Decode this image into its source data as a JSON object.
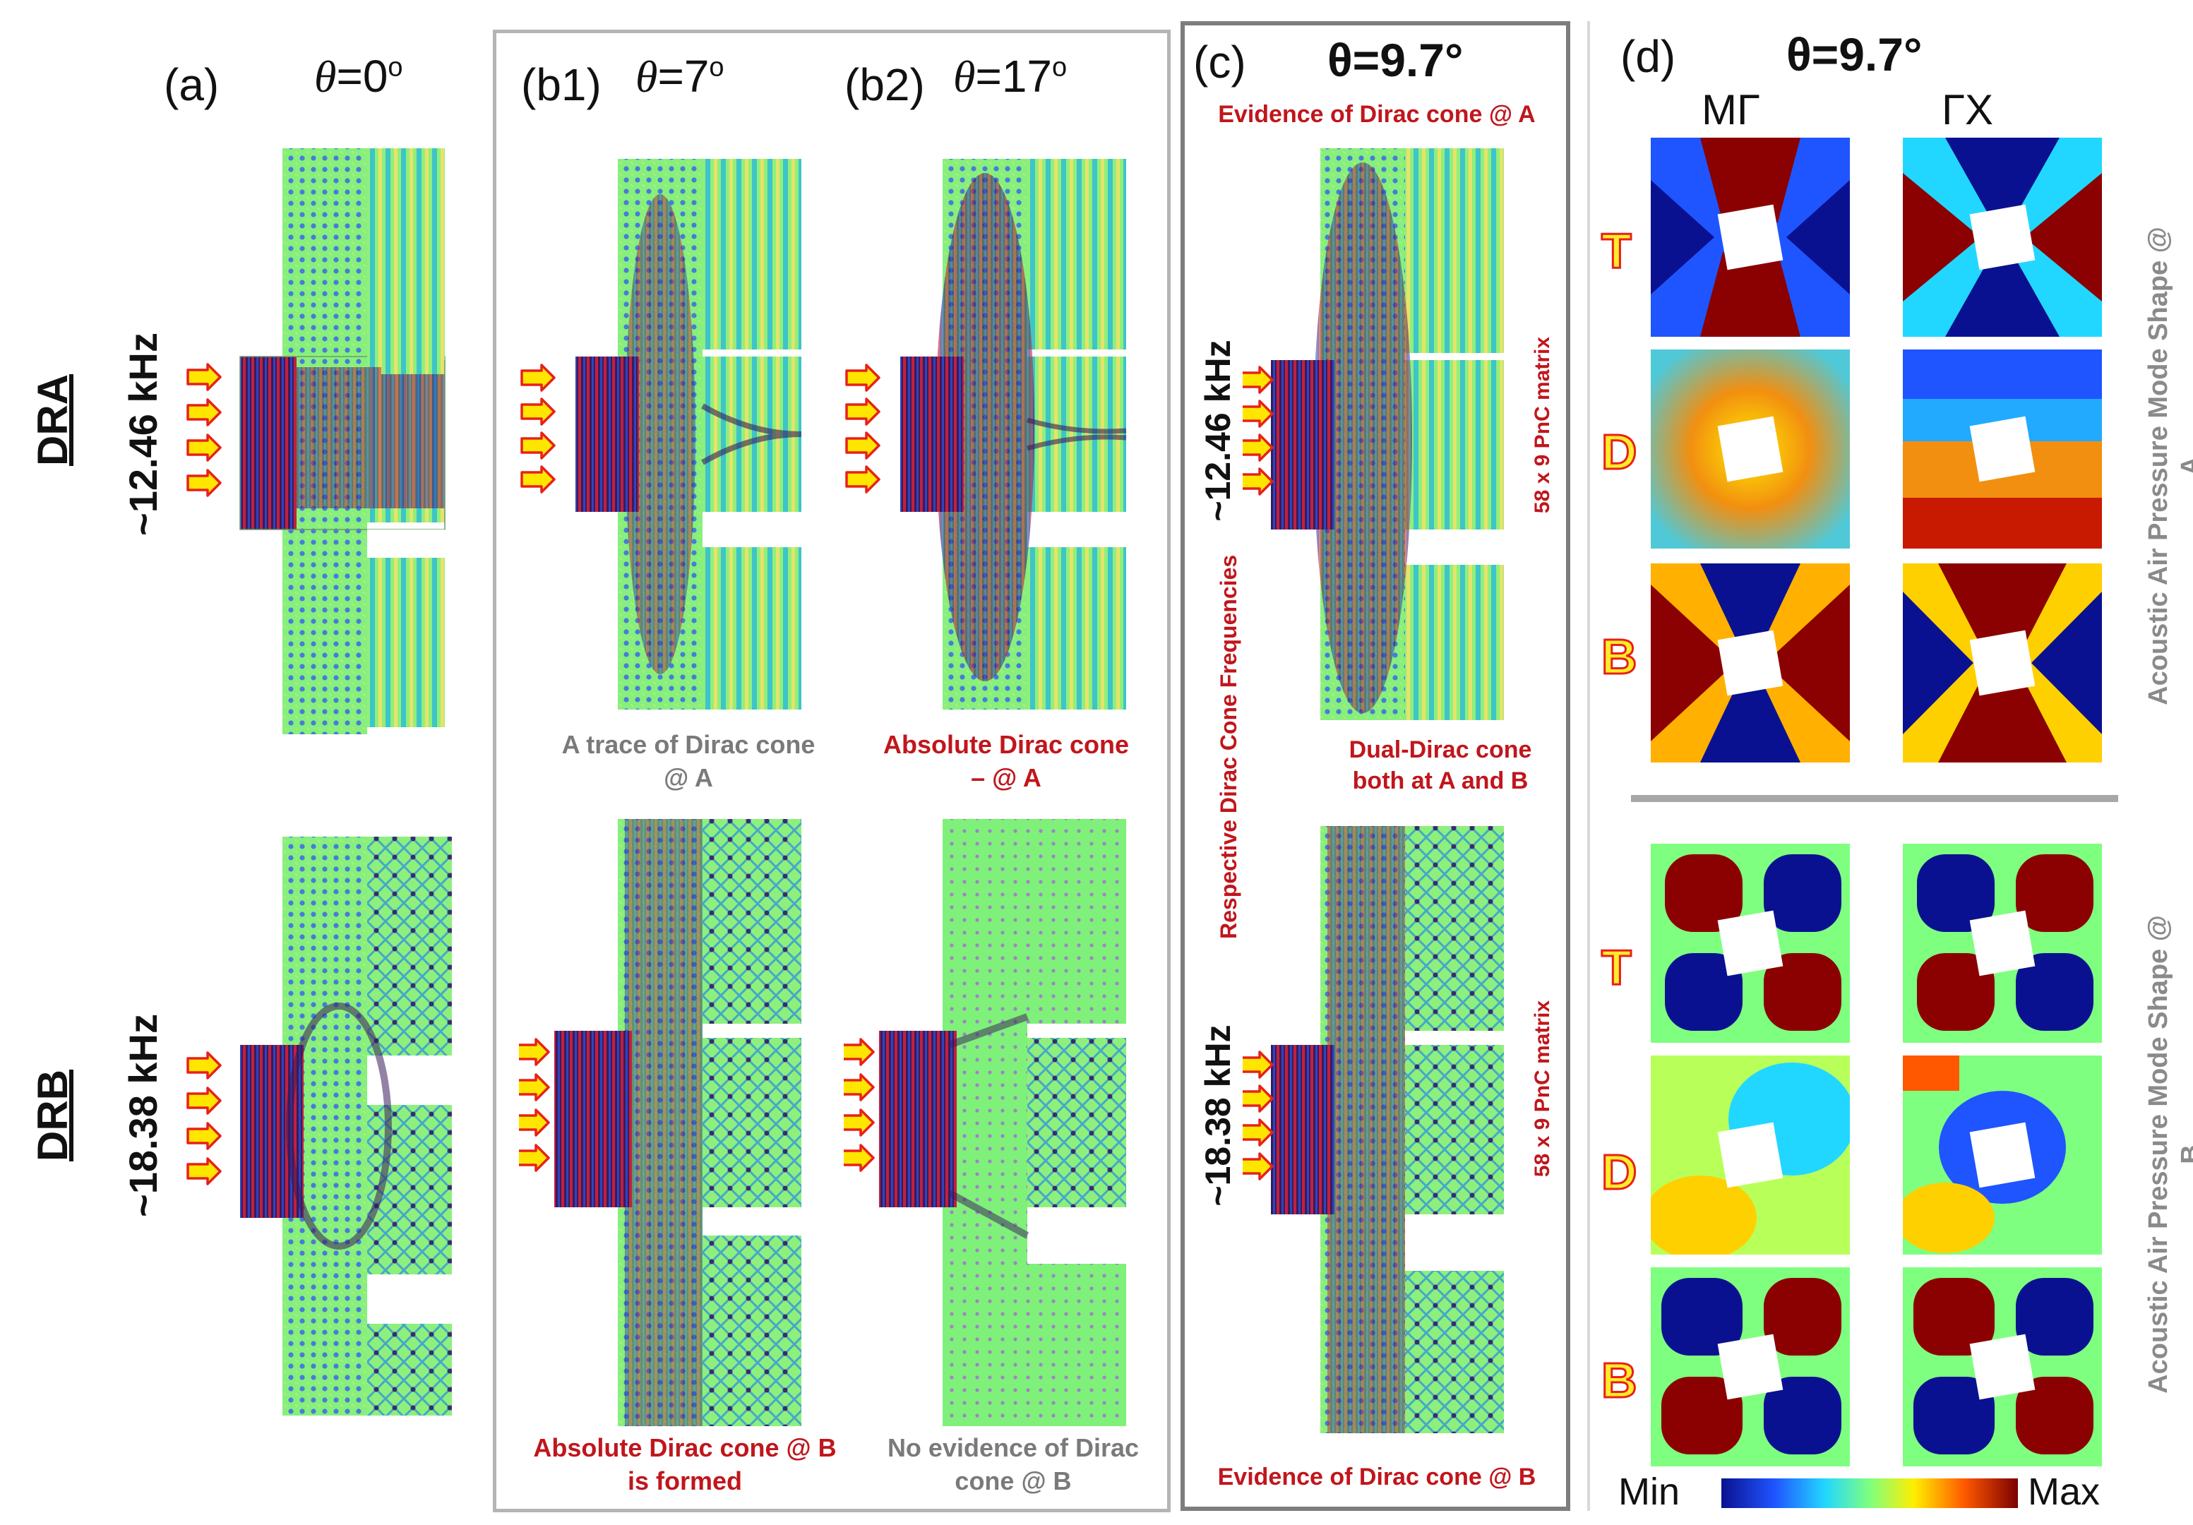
{
  "rows": {
    "dra": {
      "label": "DRA",
      "freq": "~12.46 kHz"
    },
    "drb": {
      "label": "DRB",
      "freq": "~18.38 kHz"
    }
  },
  "panels": {
    "a": {
      "label": "(a)",
      "theta_prefix": "θ",
      "theta_value": "=0",
      "deg": "o"
    },
    "b1": {
      "label": "(b1)",
      "theta_prefix": "θ",
      "theta_value": "=7",
      "deg": "o",
      "caption_top": "A trace of Dirac cone @ A",
      "caption_bottom": "Absolute Dirac cone @ B is formed"
    },
    "b2": {
      "label": "(b2)",
      "theta_prefix": "θ",
      "theta_value": "=17",
      "deg": "o",
      "caption_top": "Absolute Dirac cone – @ A",
      "caption_bottom": "No evidence of Dirac cone @ B"
    },
    "c": {
      "label": "(c)",
      "theta": "θ=9.7°",
      "evidence_a": "Evidence of Dirac cone @ A",
      "evidence_b": "Evidence of Dirac cone @ B",
      "matrix_label": "58 x 9 PnC matrix",
      "dual": "Dual-Dirac cone both at A and B",
      "respective": "Respective Dirac Cone Frequencies",
      "freq_top": "~12.46 kHz",
      "freq_bottom": "~18.38 kHz"
    },
    "d": {
      "label": "(d)",
      "theta": "θ=9.7°",
      "col1": "MΓ",
      "col2": "ΓX",
      "row_labels": [
        "T",
        "D",
        "B"
      ],
      "side_a": "Acoustic Air Pressure Mode Shape @ A",
      "side_b": "Acoustic Air Pressure Mode Shape @ B",
      "colorbar_min": "Min",
      "colorbar_max": "Max"
    }
  },
  "colors": {
    "incident_arrow": "#ffe600",
    "arrow_outline": "#e8201a",
    "field_bg": "#7ff07a",
    "field_dark": "#3a1a5c",
    "caption_red": "#c0161c",
    "caption_gray": "#7a7a7a"
  }
}
